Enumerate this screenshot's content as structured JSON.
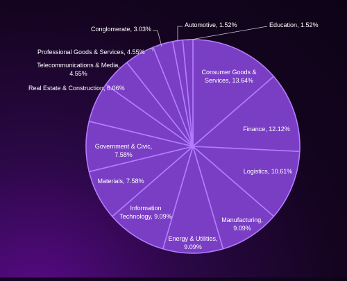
{
  "chart_data": {
    "type": "pie",
    "title": "",
    "start_angle_deg": 0,
    "direction": "clockwise",
    "colors": {
      "slice_fill": "#7a3ec4",
      "slice_stroke": "#b47cff",
      "label_text": "#ffffff",
      "leader_line": "#cccccc"
    },
    "slices": [
      {
        "label": "Consumer Goods & Services, 13.64%",
        "lines": [
          "Consumer Goods &",
          "Services, 13.64%"
        ],
        "value": 13.64
      },
      {
        "label": "Finance, 12.12%",
        "lines": [
          "Finance, 12.12%"
        ],
        "value": 12.12
      },
      {
        "label": "Logistics, 10.61%",
        "lines": [
          "Logistics, 10.61%"
        ],
        "value": 10.61
      },
      {
        "label": "Manufacturing, 9.09%",
        "lines": [
          "Manufacturing,",
          "9.09%"
        ],
        "value": 9.09
      },
      {
        "label": "Energy & Utilities, 9.09%",
        "lines": [
          "Energy & Utilities,",
          "9.09%"
        ],
        "value": 9.09
      },
      {
        "label": "Information Technology, 9.09%",
        "lines": [
          "Information",
          "Technology, 9.09%"
        ],
        "value": 9.09
      },
      {
        "label": "Materials, 7.58%",
        "lines": [
          "Materials, 7.58%"
        ],
        "value": 7.58
      },
      {
        "label": "Government & Civic, 7.58%",
        "lines": [
          "Government & Civic,",
          "7.58%"
        ],
        "value": 7.58
      },
      {
        "label": "Real Estate & Construction, 6.06%",
        "lines": [
          "Real Estate & Construction, 6.06%"
        ],
        "value": 6.06
      },
      {
        "label": "Telecommunications & Media, 4.55%",
        "lines": [
          "Telecommunications & Media,",
          "4.55%"
        ],
        "value": 4.55
      },
      {
        "label": "Professional Goods & Services, 4.55%",
        "lines": [
          "Professional Goods & Services, 4.55%"
        ],
        "value": 4.55
      },
      {
        "label": "Conglomerate, 3.03%",
        "lines": [
          "Conglomerate, 3.03%"
        ],
        "value": 3.03
      },
      {
        "label": "Automotive, 1.52%",
        "lines": [
          "Automotive, 1.52%"
        ],
        "value": 1.52
      },
      {
        "label": "Education, 1.52%",
        "lines": [
          "Education, 1.52%"
        ],
        "value": 1.52
      }
    ]
  }
}
